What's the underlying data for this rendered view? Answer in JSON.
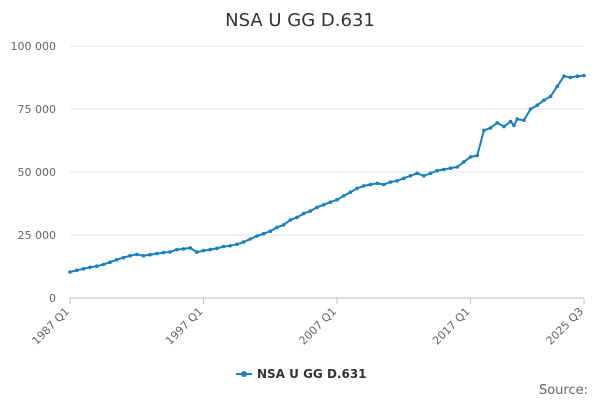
{
  "chart_data": {
    "type": "line",
    "title": "NSA U GG D.631",
    "xlabel": "",
    "ylabel": "",
    "ylim": [
      0,
      100000
    ],
    "y_ticks": [
      0,
      25000,
      50000,
      75000,
      100000
    ],
    "y_tick_labels": [
      "0",
      "25 000",
      "50 000",
      "75 000",
      "100 000"
    ],
    "x_tick_labels": [
      "1987 Q1",
      "1997 Q1",
      "2007 Q1",
      "2017 Q1",
      "2025 Q3"
    ],
    "grid": true,
    "legend_position": "bottom",
    "series": [
      {
        "name": "NSA U GG D.631",
        "color": "#1a7fbf",
        "x": [
          "1987 Q1",
          "1987 Q3",
          "1988 Q1",
          "1988 Q3",
          "1989 Q1",
          "1989 Q3",
          "1990 Q1",
          "1990 Q3",
          "1991 Q1",
          "1991 Q3",
          "1992 Q1",
          "1992 Q3",
          "1993 Q1",
          "1993 Q3",
          "1994 Q1",
          "1994 Q3",
          "1995 Q1",
          "1995 Q3",
          "1996 Q1",
          "1996 Q3",
          "1997 Q1",
          "1997 Q3",
          "1998 Q1",
          "1998 Q3",
          "1999 Q1",
          "1999 Q3",
          "2000 Q1",
          "2000 Q3",
          "2001 Q1",
          "2001 Q3",
          "2002 Q1",
          "2002 Q3",
          "2003 Q1",
          "2003 Q3",
          "2004 Q1",
          "2004 Q3",
          "2005 Q1",
          "2005 Q3",
          "2006 Q1",
          "2006 Q3",
          "2007 Q1",
          "2007 Q3",
          "2008 Q1",
          "2008 Q3",
          "2009 Q1",
          "2009 Q3",
          "2010 Q1",
          "2010 Q3",
          "2011 Q1",
          "2011 Q3",
          "2012 Q1",
          "2012 Q3",
          "2013 Q1",
          "2013 Q3",
          "2014 Q1",
          "2014 Q3",
          "2015 Q1",
          "2015 Q3",
          "2016 Q1",
          "2016 Q3",
          "2017 Q1",
          "2017 Q3",
          "2018 Q1",
          "2018 Q3",
          "2019 Q1",
          "2019 Q3",
          "2020 Q1",
          "2020 Q2",
          "2020 Q3",
          "2021 Q1",
          "2021 Q3",
          "2022 Q1",
          "2022 Q3",
          "2023 Q1",
          "2023 Q3",
          "2024 Q1",
          "2024 Q3",
          "2025 Q1",
          "2025 Q3"
        ],
        "values": [
          10300,
          11000,
          11600,
          12200,
          12600,
          13300,
          14200,
          15200,
          16000,
          16800,
          17300,
          16800,
          17200,
          17600,
          18000,
          18300,
          19200,
          19500,
          19900,
          18200,
          18800,
          19200,
          19700,
          20400,
          20700,
          21300,
          22200,
          23400,
          24600,
          25500,
          26500,
          28000,
          29000,
          31000,
          32000,
          33500,
          34500,
          36000,
          37000,
          38000,
          39000,
          40500,
          42000,
          43500,
          44500,
          45000,
          45500,
          45000,
          46000,
          46500,
          47500,
          48500,
          49500,
          48500,
          49500,
          50500,
          51000,
          51500,
          52000,
          54000,
          56000,
          56500,
          66500,
          67500,
          69500,
          68000,
          70000,
          68500,
          71000,
          70500,
          75000,
          76500,
          78500,
          80000,
          84000,
          88000,
          87500,
          88000,
          88300
        ]
      }
    ]
  },
  "legend": {
    "label": "NSA U GG D.631"
  },
  "source_label": "Source:"
}
